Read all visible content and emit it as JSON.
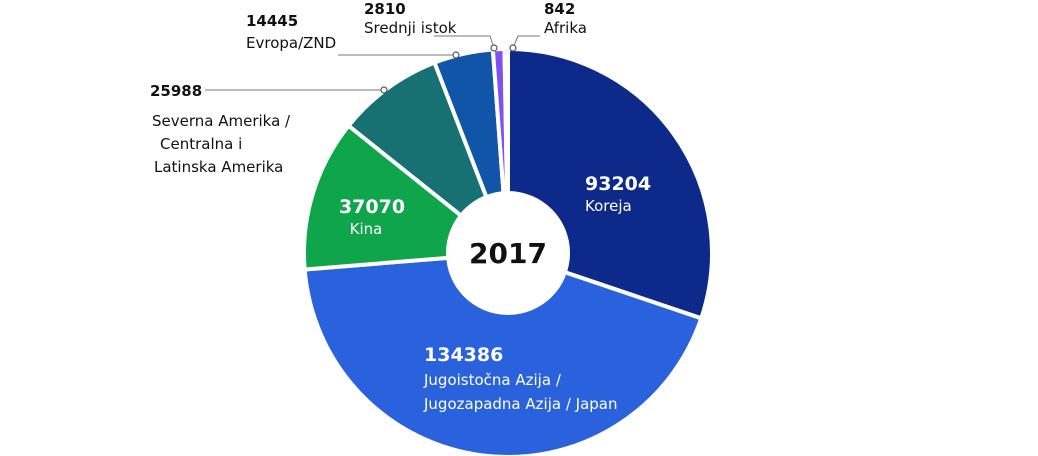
{
  "chart_data": {
    "type": "pie",
    "style": "donut",
    "center_label": "2017",
    "slices": [
      {
        "name": "Koreja",
        "value": 93204,
        "color": "#0d2a8a"
      },
      {
        "name": "Jugoistočna Azija / Jugozapadna Azija / Japan",
        "value": 134386,
        "color": "#2a62de"
      },
      {
        "name": "Kina",
        "value": 37070,
        "color": "#0fa54b"
      },
      {
        "name": "Severna Amerika / Centralna i Latinska Amerika",
        "value": 25988,
        "color": "#177172"
      },
      {
        "name": "Evropa/ZND",
        "value": 14445,
        "color": "#1155a8"
      },
      {
        "name": "Srednji istok",
        "value": 2810,
        "color": "#7e52ee"
      },
      {
        "name": "Afrika",
        "value": 842,
        "color": "#2e86c8"
      }
    ]
  },
  "labels": {
    "koreja": {
      "value": "93204",
      "lines": [
        "Koreja"
      ]
    },
    "jugoistocna": {
      "value": "134386",
      "lines": [
        "Jugoistočna Azija /",
        "Jugozapadna Azija / Japan"
      ]
    },
    "kina": {
      "value": "37070",
      "lines": [
        "Kina"
      ]
    },
    "amerika": {
      "value": "25988",
      "lines": [
        "Severna Amerika /",
        "Centralna i",
        "Latinska Amerika"
      ]
    },
    "evropa": {
      "value": "14445",
      "lines": [
        "Evropa/ZND"
      ]
    },
    "srednji": {
      "value": "2810",
      "lines": [
        "Srednji istok"
      ]
    },
    "afrika": {
      "value": "842",
      "lines": [
        "Afrika"
      ]
    }
  }
}
